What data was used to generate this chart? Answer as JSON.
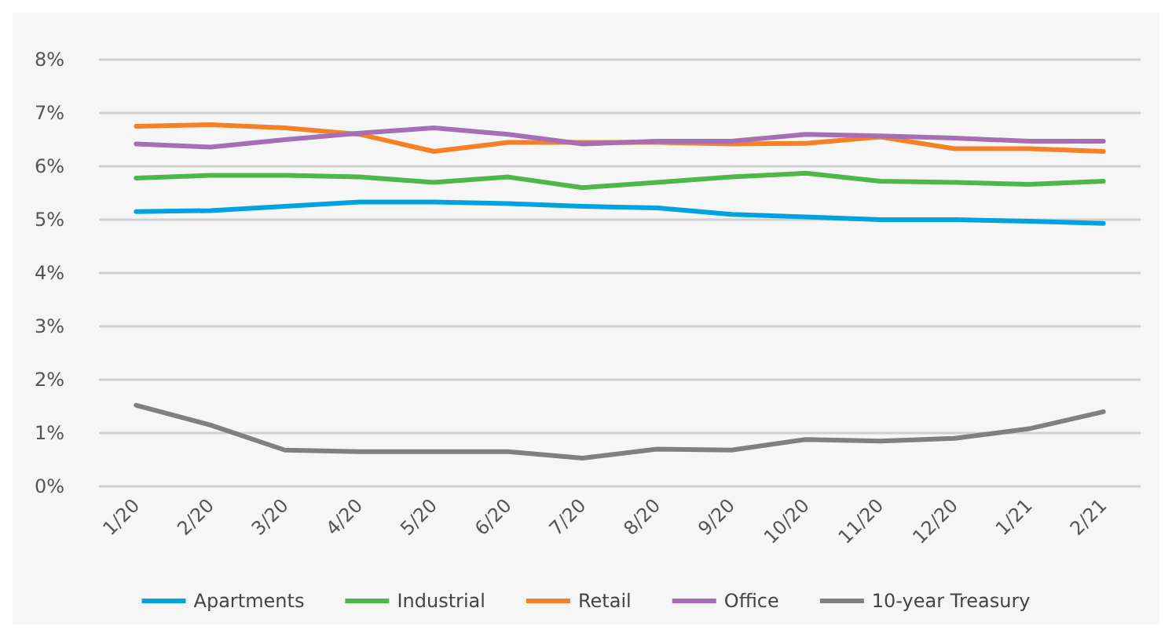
{
  "chart_data": {
    "type": "line",
    "categories": [
      "1/20",
      "2/20",
      "3/20",
      "4/20",
      "5/20",
      "6/20",
      "7/20",
      "8/20",
      "9/20",
      "10/20",
      "11/20",
      "12/20",
      "1/21",
      "2/21"
    ],
    "series": [
      {
        "name": "Apartments",
        "color": "#00a3e0",
        "values": [
          5.15,
          5.17,
          5.25,
          5.33,
          5.33,
          5.3,
          5.25,
          5.22,
          5.1,
          5.05,
          5.0,
          5.0,
          4.97,
          4.93
        ]
      },
      {
        "name": "Industrial",
        "color": "#4db848",
        "values": [
          5.78,
          5.83,
          5.83,
          5.8,
          5.7,
          5.8,
          5.6,
          5.7,
          5.8,
          5.87,
          5.72,
          5.7,
          5.66,
          5.72
        ]
      },
      {
        "name": "Retail",
        "color": "#f58025",
        "values": [
          6.75,
          6.78,
          6.72,
          6.6,
          6.28,
          6.45,
          6.45,
          6.45,
          6.42,
          6.43,
          6.55,
          6.33,
          6.33,
          6.28
        ]
      },
      {
        "name": "Office",
        "color": "#a66fb5",
        "values": [
          6.42,
          6.36,
          6.5,
          6.62,
          6.72,
          6.6,
          6.42,
          6.47,
          6.47,
          6.6,
          6.57,
          6.53,
          6.47,
          6.47
        ]
      },
      {
        "name": "10-year Treasury",
        "color": "#808080",
        "values": [
          1.52,
          1.15,
          0.68,
          0.65,
          0.65,
          0.65,
          0.53,
          0.7,
          0.68,
          0.88,
          0.85,
          0.9,
          1.08,
          1.4
        ]
      }
    ],
    "ylim": [
      0,
      8
    ],
    "yticks": [
      {
        "value": 0,
        "label": "0%"
      },
      {
        "value": 1,
        "label": "1%"
      },
      {
        "value": 2,
        "label": "2%"
      },
      {
        "value": 3,
        "label": "3%"
      },
      {
        "value": 4,
        "label": "4%"
      },
      {
        "value": 5,
        "label": "5%"
      },
      {
        "value": 6,
        "label": "6%"
      },
      {
        "value": 7,
        "label": "7%"
      },
      {
        "value": 8,
        "label": "8%"
      }
    ],
    "grid": "y",
    "legend": "bottom",
    "marker": "none",
    "line_style": "solid"
  }
}
